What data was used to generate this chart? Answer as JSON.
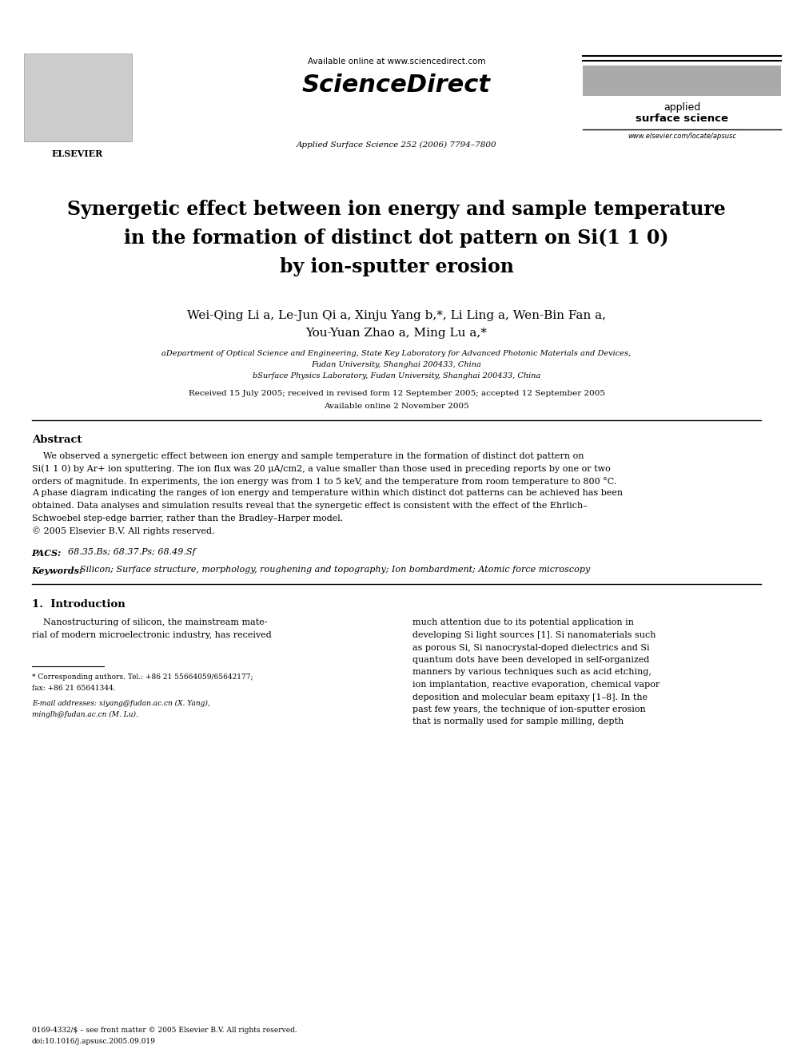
{
  "background_color": "#ffffff",
  "page_width": 9.92,
  "page_height": 13.23,
  "header": {
    "available_online": "Available online at www.sciencedirect.com",
    "sciencedirect": "ScienceDirect",
    "journal_info": "Applied Surface Science 252 (2006) 7794–7800",
    "journal_name_line1": "applied",
    "journal_name_line2": "surface science",
    "website": "www.elsevier.com/locate/apsusc",
    "elsevier": "ELSEVIER"
  },
  "title_lines": [
    "Synergetic effect between ion energy and sample temperature",
    "in the formation of distinct dot pattern on Si(1 1 0)",
    "by ion-sputter erosion"
  ],
  "author_line1": "Wei-Qing Li a, Le-Jun Qi a, Xinju Yang b,*, Li Ling a, Wen-Bin Fan a,",
  "author_line2": "You-Yuan Zhao a, Ming Lu a,*",
  "aff_a": "aDepartment of Optical Science and Engineering, State Key Laboratory for Advanced Photonic Materials and Devices,",
  "aff_a2": "Fudan University, Shanghai 200433, China",
  "aff_b": "bSurface Physics Laboratory, Fudan University, Shanghai 200433, China",
  "date1": "Received 15 July 2005; received in revised form 12 September 2005; accepted 12 September 2005",
  "date2": "Available online 2 November 2005",
  "abstract_title": "Abstract",
  "abstract_lines": [
    "    We observed a synergetic effect between ion energy and sample temperature in the formation of distinct dot pattern on",
    "Si(1 1 0) by Ar+ ion sputtering. The ion flux was 20 μA/cm2, a value smaller than those used in preceding reports by one or two",
    "orders of magnitude. In experiments, the ion energy was from 1 to 5 keV, and the temperature from room temperature to 800 °C.",
    "A phase diagram indicating the ranges of ion energy and temperature within which distinct dot patterns can be achieved has been",
    "obtained. Data analyses and simulation results reveal that the synergetic effect is consistent with the effect of the Ehrlich–",
    "Schwoebel step-edge barrier, rather than the Bradley–Harper model.",
    "© 2005 Elsevier B.V. All rights reserved."
  ],
  "pacs_label": "PACS:",
  "pacs_text": "  68.35.Bs; 68.37.Ps; 68.49.Sf",
  "kw_label": "Keywords:",
  "kw_text": "  Silicon; Surface structure, morphology, roughening and topography; Ion bombardment; Atomic force microscopy",
  "sec1_title": "1.  Introduction",
  "col1_lines": [
    "    Nanostructuring of silicon, the mainstream mate-",
    "rial of modern microelectronic industry, has received"
  ],
  "col2_lines": [
    "much attention due to its potential application in",
    "developing Si light sources [1]. Si nanomaterials such",
    "as porous Si, Si nanocrystal-doped dielectrics and Si",
    "quantum dots have been developed in self-organized",
    "manners by various techniques such as acid etching,",
    "ion implantation, reactive evaporation, chemical vapor",
    "deposition and molecular beam epitaxy [1–8]. In the",
    "past few years, the technique of ion-sputter erosion",
    "that is normally used for sample milling, depth"
  ],
  "fn1_lines": [
    "* Corresponding authors. Tel.: +86 21 55664059/65642177;",
    "fax: +86 21 65641344."
  ],
  "fn2_lines": [
    "E-mail addresses: xiyang@fudan.ac.cn (X. Yang),",
    "minglh@fudan.ac.cn (M. Lu)."
  ],
  "footer1": "0169-4332/$ – see front matter © 2005 Elsevier B.V. All rights reserved.",
  "footer2": "doi:10.1016/j.apsusc.2005.09.019",
  "colors": {
    "black": "#000000",
    "blue_link": "#0000cc",
    "gray_logo": "#888888",
    "gray_rect": "#bbbbbb"
  }
}
